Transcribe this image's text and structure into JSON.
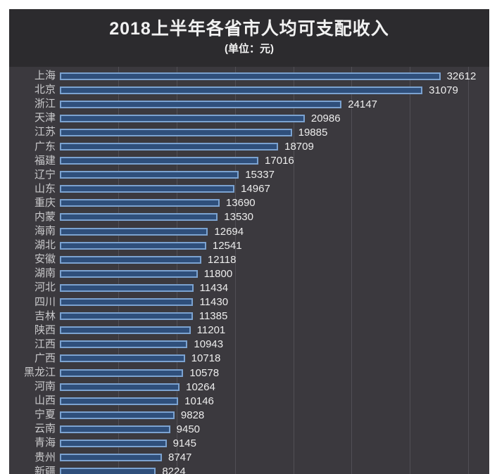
{
  "header": {
    "title": "2018上半年各省市人均可支配收入",
    "subtitle": "(单位：元)"
  },
  "chart_data": {
    "type": "bar",
    "orientation": "horizontal",
    "title": "2018上半年各省市人均可支配收入",
    "subtitle": "(单位：元)",
    "unit": "元",
    "categories": [
      "上海",
      "北京",
      "浙江",
      "天津",
      "江苏",
      "广东",
      "福建",
      "辽宁",
      "山东",
      "重庆",
      "内蒙",
      "海南",
      "湖北",
      "安徽",
      "湖南",
      "河北",
      "四川",
      "吉林",
      "陕西",
      "江西",
      "广西",
      "黑龙江",
      "河南",
      "山西",
      "宁夏",
      "云南",
      "青海",
      "贵州",
      "新疆"
    ],
    "values": [
      32612,
      31079,
      24147,
      20986,
      19885,
      18709,
      17016,
      15337,
      14967,
      13690,
      13530,
      12694,
      12541,
      12118,
      11800,
      11434,
      11430,
      11385,
      11201,
      10943,
      10718,
      10578,
      10264,
      10146,
      9828,
      9450,
      9145,
      8747,
      8224
    ],
    "xlabel": "",
    "ylabel": "",
    "xlim": [
      0,
      36800
    ],
    "gridline_interval": 5000,
    "gridlines": [
      5000,
      10000,
      15000,
      20000,
      25000,
      30000,
      35000
    ],
    "grid": "vertical-only",
    "legend": "none",
    "value_labels": "outside-end",
    "last_row_clipped": true,
    "colors": {
      "panel_bg": "#3b393e",
      "title_band_bg": "#2c2b2e",
      "bar_fill": "#2f4f7b",
      "bar_border": "#7ba2d0",
      "grid_line": "#514f55",
      "category_label_text": "#c9c9cb",
      "value_label_text": "#ededed",
      "title_text": "#f2f2f2",
      "page_bg": "#ffffff"
    }
  }
}
